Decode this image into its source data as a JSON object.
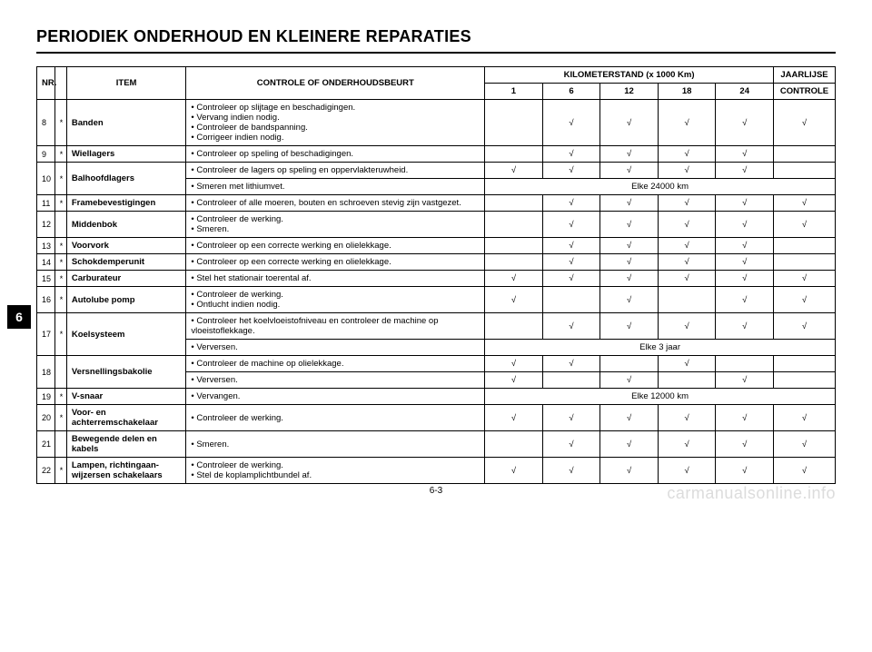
{
  "title": "PERIODIEK ONDERHOUD EN KLEINERE REPARATIES",
  "chapter_tab": "6",
  "page_number": "6-3",
  "watermark": "carmanualsonline.info",
  "check_mark": "√",
  "colors": {
    "text": "#000000",
    "background": "#ffffff",
    "watermark": "#dcdcdc",
    "border": "#000000"
  },
  "header": {
    "nr": "NR.",
    "item": "ITEM",
    "control": "CONTROLE OF ONDERHOUDSBEURT",
    "km_title": "KILOMETERSTAND (x 1000 Km)",
    "km_cols": [
      "1",
      "6",
      "12",
      "18",
      "24"
    ],
    "yearly_top": "JAARLIJSE",
    "yearly_bottom": "CONTROLE"
  },
  "rows": [
    {
      "nr": "8",
      "star": "*",
      "item": "Banden",
      "control": "• Controleer op slijtage en beschadigingen.\n• Vervang indien nodig.\n• Controleer de bandspanning.\n• Corrigeer indien nodig.",
      "checks": [
        "",
        "√",
        "√",
        "√",
        "√"
      ],
      "yearly": "√"
    },
    {
      "nr": "9",
      "star": "*",
      "item": "Wiellagers",
      "control": "• Controleer op speling of beschadigingen.",
      "checks": [
        "",
        "√",
        "√",
        "√",
        "√"
      ],
      "yearly": ""
    },
    {
      "nr": "10",
      "star": "*",
      "item": "Balhoofdlagers",
      "subrows": [
        {
          "control": "• Controleer de lagers op speling en oppervlakteruwheid.",
          "checks": [
            "√",
            "√",
            "√",
            "√",
            "√"
          ],
          "yearly": ""
        },
        {
          "control": "• Smeren met lithiumvet.",
          "span_text": "Elke 24000 km"
        }
      ]
    },
    {
      "nr": "11",
      "star": "*",
      "item": "Framebevestigingen",
      "control": "• Controleer of alle moeren, bouten en schroeven stevig zijn vastgezet.",
      "checks": [
        "",
        "√",
        "√",
        "√",
        "√"
      ],
      "yearly": "√"
    },
    {
      "nr": "12",
      "star": "",
      "item": "Middenbok",
      "control": "• Controleer de werking.\n• Smeren.",
      "checks": [
        "",
        "√",
        "√",
        "√",
        "√"
      ],
      "yearly": "√"
    },
    {
      "nr": "13",
      "star": "*",
      "item": "Voorvork",
      "control": "• Controleer op een correcte werking en olielekkage.",
      "checks": [
        "",
        "√",
        "√",
        "√",
        "√"
      ],
      "yearly": ""
    },
    {
      "nr": "14",
      "star": "*",
      "item": "Schokdemperunit",
      "control": "• Controleer op een correcte werking en olielekkage.",
      "checks": [
        "",
        "√",
        "√",
        "√",
        "√"
      ],
      "yearly": ""
    },
    {
      "nr": "15",
      "star": "*",
      "item": "Carburateur",
      "control": "• Stel het stationair toerental af.",
      "checks": [
        "√",
        "√",
        "√",
        "√",
        "√"
      ],
      "yearly": "√"
    },
    {
      "nr": "16",
      "star": "*",
      "item": "Autolube pomp",
      "control": "• Controleer de werking.\n• Ontlucht indien nodig.",
      "checks": [
        "√",
        "",
        "√",
        "",
        "√"
      ],
      "yearly": "√"
    },
    {
      "nr": "17",
      "star": "*",
      "item": "Koelsysteem",
      "subrows": [
        {
          "control": "• Controleer het koelvloeistofniveau en controleer de machine op vloeistoflekkage.",
          "checks": [
            "",
            "√",
            "√",
            "√",
            "√"
          ],
          "yearly": "√"
        },
        {
          "control": "• Verversen.",
          "span_text": "Elke 3 jaar"
        }
      ]
    },
    {
      "nr": "18",
      "star": "",
      "item": "Versnellingsbakolie",
      "subrows": [
        {
          "control": "• Controleer de machine op olielekkage.",
          "checks": [
            "√",
            "√",
            "",
            "√",
            ""
          ],
          "yearly": ""
        },
        {
          "control": "• Verversen.",
          "checks": [
            "√",
            "",
            "√",
            "",
            "√"
          ],
          "yearly": ""
        }
      ]
    },
    {
      "nr": "19",
      "star": "*",
      "item": "V-snaar",
      "control": "• Vervangen.",
      "span_text": "Elke 12000 km"
    },
    {
      "nr": "20",
      "star": "*",
      "item": "Voor- en achterremschakelaar",
      "control": "• Controleer de werking.",
      "checks": [
        "√",
        "√",
        "√",
        "√",
        "√"
      ],
      "yearly": "√"
    },
    {
      "nr": "21",
      "star": "",
      "item": "Bewegende delen en kabels",
      "control": "• Smeren.",
      "checks": [
        "",
        "√",
        "√",
        "√",
        "√"
      ],
      "yearly": "√"
    },
    {
      "nr": "22",
      "star": "*",
      "item": "Lampen, richtingaan-wijzersen schakelaars",
      "control": "• Controleer de werking.\n• Stel de koplamplichtbundel af.",
      "checks": [
        "√",
        "√",
        "√",
        "√",
        "√"
      ],
      "yearly": "√"
    }
  ]
}
